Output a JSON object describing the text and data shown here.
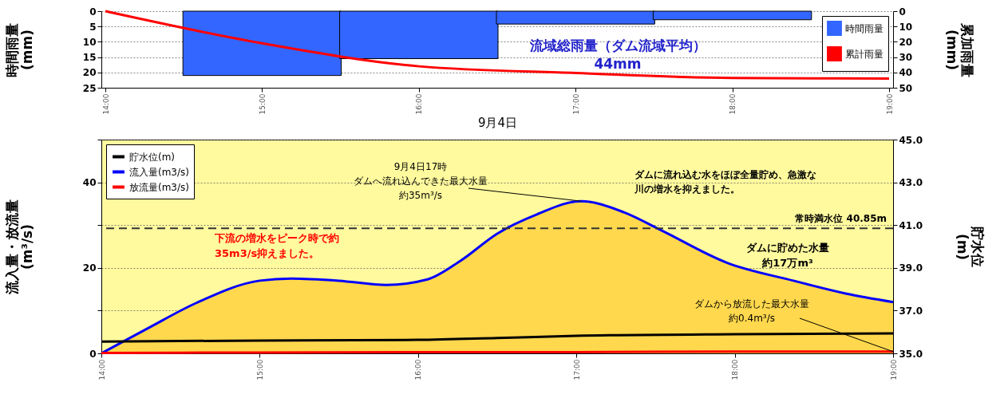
{
  "chart_data": [
    {
      "type": "bar",
      "xlabel": "9月4日",
      "ylabel": "時間雨量\n(mm)",
      "y2label": "累加雨量\n(mm)",
      "xlim": [
        14,
        19
      ],
      "xticks": [
        {
          "value": 14,
          "label": "14:00"
        },
        {
          "value": 15,
          "label": "15:00"
        },
        {
          "value": 16,
          "label": "16:00"
        },
        {
          "value": 17,
          "label": "17:00"
        },
        {
          "value": 18,
          "label": "18:00"
        },
        {
          "value": 19,
          "label": "19:00"
        }
      ],
      "ylim": [
        25,
        0
      ],
      "yticks": [
        0,
        5,
        10,
        15,
        20,
        25
      ],
      "y2lim": [
        50,
        0
      ],
      "y2ticks": [
        0,
        10,
        20,
        30,
        40,
        50
      ],
      "series": [
        {
          "name": "時間雨量",
          "type": "bar",
          "color": "#3366ff",
          "x": [
            15,
            16,
            17,
            18
          ],
          "values": [
            21,
            15.5,
            4.2,
            2.8
          ]
        },
        {
          "name": "累計雨量",
          "type": "line",
          "axis": "y2",
          "color": "#ff0000",
          "x": [
            14,
            15,
            16,
            17,
            18,
            19
          ],
          "values": [
            0,
            21,
            36,
            40.4,
            43.6,
            44
          ]
        }
      ],
      "grid": "y",
      "legend": "top right",
      "annotations": [
        "流域総雨量（ダム流域平均）44mm"
      ]
    },
    {
      "type": "line",
      "ylabel": "流入量・放流量\n(m³/s)",
      "y2label": "貯水位\n(m)",
      "xlim": [
        14,
        19
      ],
      "xticks": [
        {
          "value": 14,
          "label": "14:00"
        },
        {
          "value": 15,
          "label": "15:00"
        },
        {
          "value": 16,
          "label": "16:00"
        },
        {
          "value": 17,
          "label": "17:00"
        },
        {
          "value": 18,
          "label": "18:00"
        },
        {
          "value": 19,
          "label": "19:00"
        }
      ],
      "ylim": [
        0,
        50
      ],
      "yticks": [
        0,
        {
          "value": 10,
          "label": null
        },
        20,
        {
          "value": 30,
          "label": null
        },
        40,
        {
          "value": 50,
          "label": null
        }
      ],
      "y2lim": [
        35,
        45
      ],
      "y2ticks": [
        {
          "value": 35,
          "label": "35.0"
        },
        {
          "value": 37,
          "label": "37.0"
        },
        {
          "value": 39,
          "label": "39.0"
        },
        {
          "value": 41,
          "label": "41.0"
        },
        {
          "value": 43,
          "label": "43.0"
        },
        {
          "value": 45,
          "label": "45.0"
        }
      ],
      "series": [
        {
          "name": "貯水位(m)",
          "axis": "y2",
          "color": "#000000",
          "x": [
            14,
            15,
            16,
            16.5,
            17,
            18,
            19
          ],
          "values": [
            35.55,
            35.6,
            35.63,
            35.72,
            35.82,
            35.9,
            35.93
          ]
        },
        {
          "name": "流入量(m3/s)",
          "color": "#0000ff",
          "lower": [
            0,
            0,
            0,
            0,
            0,
            0,
            0,
            0,
            0,
            0,
            0,
            0,
            0,
            0,
            0,
            0,
            0,
            0
          ],
          "upper": [
            0,
            6,
            11.8,
            17,
            17.5,
            17,
            16,
            17.3,
            21.7,
            28,
            32.5,
            35.6,
            33,
            28.7,
            21.2,
            17,
            14,
            12
          ],
          "x": [
            14,
            14.3,
            14.6,
            15,
            15.2,
            15.5,
            15.8,
            16.06,
            16.27,
            16.5,
            16.75,
            17.03,
            17.3,
            17.54,
            17.95,
            18.37,
            18.7,
            19
          ],
          "values": [
            0,
            6,
            11.8,
            17,
            17.5,
            17,
            16,
            17.3,
            21.7,
            28,
            32.5,
            35.6,
            33,
            28.7,
            21.2,
            17,
            14,
            12
          ]
        },
        {
          "name": "放流量(m3/s)",
          "color": "#ff0000",
          "x": [
            14,
            15,
            16,
            17,
            18,
            19
          ],
          "values": [
            0.1,
            0.2,
            0.3,
            0.3,
            0.4,
            0.4
          ]
        }
      ],
      "ref_lines": [
        {
          "axis": "y2",
          "value": 40.85,
          "label": "常時満水位 40.85m",
          "color": "#333333",
          "line_style": "dashed"
        }
      ],
      "grid": "y",
      "legend": "top left",
      "annotations": [
        {
          "text": "9月4日17時ダムへ流れ込んできた最大水量約35m³/s",
          "x": 17.03,
          "y": 35.6
        },
        "ダムに流れ込む水をほぼ全量貯め、急激な川の増水を抑えました。",
        "下流の増水をピーク時で約35m3/s抑えました。",
        "ダムに貯めた水量約17万m³",
        {
          "text": "ダムから放流した最大水量約0.4m³/s",
          "x": 19,
          "y": 0.4
        }
      ]
    }
  ]
}
